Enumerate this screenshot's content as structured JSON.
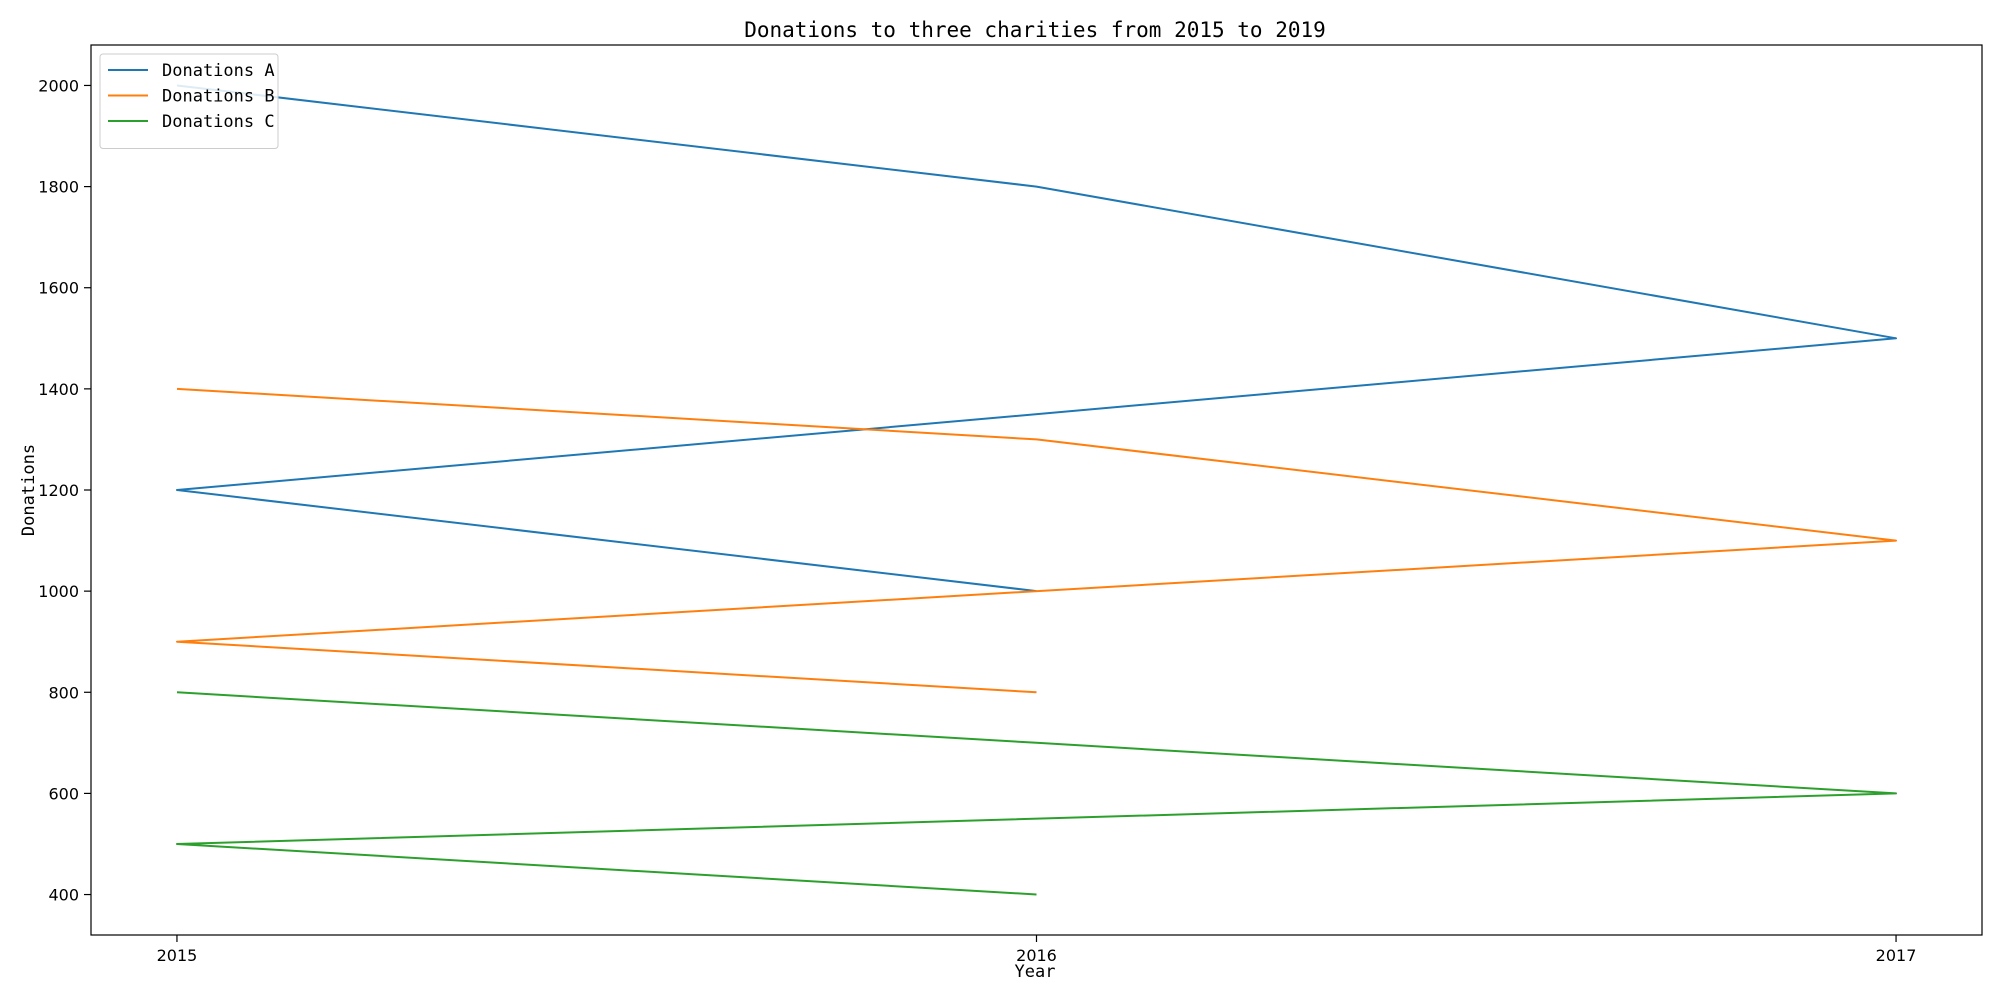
{
  "chart_data": {
    "type": "line",
    "title": "Donations to three charities from 2015 to 2019",
    "xlabel": "Year",
    "ylabel": "Donations",
    "x_ticks": [
      "2015",
      "2016",
      "2017"
    ],
    "x_tick_values": [
      2015,
      2016,
      2017
    ],
    "y_ticks": [
      "400",
      "600",
      "800",
      "1000",
      "1200",
      "1400",
      "1600",
      "1800",
      "2000"
    ],
    "y_tick_values": [
      400,
      600,
      800,
      1000,
      1200,
      1400,
      1600,
      1800,
      2000
    ],
    "xlim": [
      2014.9,
      2017.1
    ],
    "ylim": [
      320,
      2080
    ],
    "grid": false,
    "legend_position": "upper-left",
    "series": [
      {
        "name": "Donations A",
        "color": "#1f77b4",
        "points": [
          [
            2015,
            2000
          ],
          [
            2016,
            1800
          ],
          [
            2017,
            1500
          ],
          [
            2015,
            1200
          ],
          [
            2016,
            1000
          ]
        ]
      },
      {
        "name": "Donations B",
        "color": "#ff7f0e",
        "points": [
          [
            2015,
            1400
          ],
          [
            2016,
            1300
          ],
          [
            2017,
            1100
          ],
          [
            2015,
            900
          ],
          [
            2016,
            800
          ]
        ]
      },
      {
        "name": "Donations C",
        "color": "#2ca02c",
        "points": [
          [
            2015,
            800
          ],
          [
            2016,
            700
          ],
          [
            2017,
            600
          ],
          [
            2015,
            500
          ],
          [
            2016,
            400
          ]
        ]
      }
    ]
  }
}
